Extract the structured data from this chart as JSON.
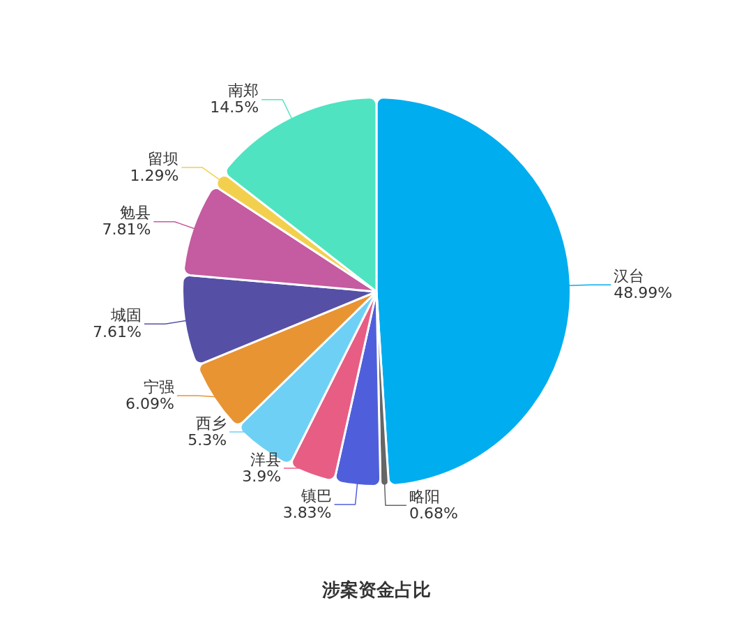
{
  "chart_data": {
    "type": "pie",
    "title": "涉案资金占比",
    "categories": [
      "汉台",
      "略阳",
      "镇巴",
      "洋县",
      "西乡",
      "宁强",
      "城固",
      "勉县",
      "留坝",
      "南郑"
    ],
    "values": [
      48.99,
      0.68,
      3.83,
      3.9,
      5.3,
      6.09,
      7.61,
      7.81,
      1.29,
      14.5
    ],
    "value_labels": [
      "48.99%",
      "0.68%",
      "3.83%",
      "3.9%",
      "5.3%",
      "6.09%",
      "7.61%",
      "7.81%",
      "1.29%",
      "14.5%"
    ],
    "colors": [
      "#00adef",
      "#666666",
      "#4f5fdc",
      "#e85d84",
      "#6fd0f5",
      "#e89433",
      "#5550a6",
      "#c55ba0",
      "#f2d04e",
      "#4fe3c1"
    ],
    "legend": false
  }
}
